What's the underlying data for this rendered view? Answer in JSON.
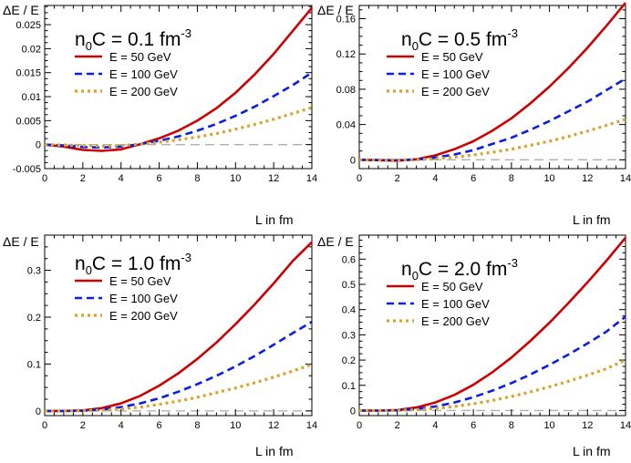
{
  "figure": {
    "xlabel": "L  in  fm",
    "ylabel": "ΔE / E"
  },
  "chart_data": [
    {
      "type": "line",
      "title": {
        "prefix": "n",
        "sub": "0",
        "main": "C = 0.1 fm",
        "sup": "-3"
      },
      "xlabel": "L  in  fm",
      "ylabel": "ΔE / E",
      "xlim": [
        0,
        14
      ],
      "ylim": [
        -0.005,
        0.029
      ],
      "xticks": [
        0,
        2,
        4,
        6,
        8,
        10,
        12,
        14
      ],
      "yticks": [
        -0.005,
        0,
        0.005,
        0.01,
        0.015,
        0.02,
        0.025
      ],
      "ytick_labels": [
        "-0.005",
        "0",
        "0.005",
        "0.01",
        "0.015",
        "0.02",
        "0.025"
      ],
      "x": [
        0,
        1,
        2,
        3,
        4,
        5,
        6,
        7,
        8,
        9,
        10,
        11,
        12,
        13,
        14
      ],
      "series": [
        {
          "name": "E = 50 GeV",
          "values": [
            0,
            -0.0004,
            -0.0011,
            -0.0013,
            -0.001,
            0.0001,
            0.0013,
            0.0029,
            0.005,
            0.0076,
            0.0108,
            0.0146,
            0.0189,
            0.0237,
            0.0285
          ]
        },
        {
          "name": "E = 100 GeV",
          "values": [
            0,
            -0.0002,
            -0.0005,
            -0.0006,
            -0.0004,
            0.0001,
            0.0008,
            0.0017,
            0.0029,
            0.0043,
            0.006,
            0.0079,
            0.0101,
            0.0124,
            0.015
          ]
        },
        {
          "name": "E = 200 GeV",
          "values": [
            0,
            -0.0001,
            -0.0002,
            -0.0003,
            -0.0002,
            0.0001,
            0.0005,
            0.001,
            0.0016,
            0.0023,
            0.0032,
            0.0042,
            0.0053,
            0.0065,
            0.0077
          ]
        }
      ]
    },
    {
      "type": "line",
      "title": {
        "prefix": "n",
        "sub": "0",
        "main": "C = 0.5 fm",
        "sup": "-3"
      },
      "xlabel": "L  in  fm",
      "ylabel": "ΔE / E",
      "xlim": [
        0,
        14
      ],
      "ylim": [
        -0.01,
        0.175
      ],
      "xticks": [
        0,
        2,
        4,
        6,
        8,
        10,
        12,
        14
      ],
      "yticks": [
        0,
        0.04,
        0.08,
        0.12,
        0.16
      ],
      "ytick_labels": [
        "0",
        "0.04",
        "0.08",
        "0.12",
        "0.16"
      ],
      "x": [
        0,
        1,
        2,
        3,
        4,
        5,
        6,
        7,
        8,
        9,
        10,
        11,
        12,
        13,
        14
      ],
      "series": [
        {
          "name": "E = 50 GeV",
          "values": [
            0,
            -0.0005,
            -0.001,
            0.0005,
            0.005,
            0.012,
            0.021,
            0.033,
            0.047,
            0.064,
            0.083,
            0.104,
            0.127,
            0.152,
            0.178
          ]
        },
        {
          "name": "E = 100 GeV",
          "values": [
            0,
            -0.0003,
            -0.0005,
            0.0003,
            0.0025,
            0.006,
            0.011,
            0.018,
            0.025,
            0.034,
            0.044,
            0.055,
            0.066,
            0.079,
            0.092
          ]
        },
        {
          "name": "E = 200 GeV",
          "values": [
            0,
            -0.0002,
            -0.0003,
            0.0001,
            0.0012,
            0.003,
            0.0055,
            0.0085,
            0.012,
            0.0165,
            0.021,
            0.0265,
            0.0325,
            0.039,
            0.046
          ]
        }
      ]
    },
    {
      "type": "line",
      "title": {
        "prefix": "n",
        "sub": "0",
        "main": "C = 1.0 fm",
        "sup": "-3"
      },
      "xlabel": "L  in  fm",
      "ylabel": "ΔE / E",
      "xlim": [
        0,
        14
      ],
      "ylim": [
        -0.01,
        0.375
      ],
      "xticks": [
        0,
        2,
        4,
        6,
        8,
        10,
        12,
        14
      ],
      "yticks": [
        0,
        0.1,
        0.2,
        0.3
      ],
      "ytick_labels": [
        "0",
        "0.1",
        "0.2",
        "0.3"
      ],
      "x": [
        0,
        1,
        2,
        3,
        4,
        5,
        6,
        7,
        8,
        9,
        10,
        11,
        12,
        13,
        14
      ],
      "series": [
        {
          "name": "E = 50 GeV",
          "values": [
            0,
            0,
            0.001,
            0.006,
            0.016,
            0.032,
            0.054,
            0.08,
            0.111,
            0.146,
            0.185,
            0.227,
            0.272,
            0.32,
            0.36
          ]
        },
        {
          "name": "E = 100 GeV",
          "values": [
            0,
            0,
            0.0005,
            0.003,
            0.008,
            0.016,
            0.027,
            0.041,
            0.057,
            0.075,
            0.095,
            0.117,
            0.141,
            0.166,
            0.19
          ]
        },
        {
          "name": "E = 200 GeV",
          "values": [
            0,
            0,
            0.0003,
            0.0015,
            0.004,
            0.008,
            0.014,
            0.021,
            0.029,
            0.039,
            0.049,
            0.06,
            0.072,
            0.085,
            0.099
          ]
        }
      ]
    },
    {
      "type": "line",
      "title": {
        "prefix": "n",
        "sub": "0",
        "main": "C = 2.0 fm",
        "sup": "-3"
      },
      "xlabel": "L  in  fm",
      "ylabel": "ΔE / E",
      "xlim": [
        0,
        14
      ],
      "ylim": [
        -0.02,
        0.695
      ],
      "xticks": [
        0,
        2,
        4,
        6,
        8,
        10,
        12,
        14
      ],
      "yticks": [
        0,
        0.1,
        0.2,
        0.3,
        0.4,
        0.5,
        0.6
      ],
      "ytick_labels": [
        "0",
        "0.1",
        "0.2",
        "0.3",
        "0.4",
        "0.5",
        "0.6"
      ],
      "x": [
        0,
        1,
        2,
        3,
        4,
        5,
        6,
        7,
        8,
        9,
        10,
        11,
        12,
        13,
        14
      ],
      "series": [
        {
          "name": "E = 50 GeV",
          "values": [
            0,
            0,
            0.002,
            0.012,
            0.032,
            0.062,
            0.102,
            0.152,
            0.21,
            0.276,
            0.348,
            0.426,
            0.508,
            0.594,
            0.685
          ]
        },
        {
          "name": "E = 100 GeV",
          "values": [
            0,
            0,
            0.001,
            0.006,
            0.016,
            0.032,
            0.053,
            0.079,
            0.109,
            0.143,
            0.181,
            0.222,
            0.266,
            0.313,
            0.372
          ]
        },
        {
          "name": "E = 200 GeV",
          "values": [
            0,
            0,
            0.0005,
            0.003,
            0.008,
            0.016,
            0.027,
            0.04,
            0.056,
            0.074,
            0.094,
            0.116,
            0.14,
            0.166,
            0.2
          ]
        }
      ]
    }
  ],
  "styles": {
    "colors": [
      "#cc0000",
      "#0a1ee6",
      "#d9a22e"
    ],
    "zero_line_color": "#b0b0b0",
    "axis_color": "#000000"
  }
}
